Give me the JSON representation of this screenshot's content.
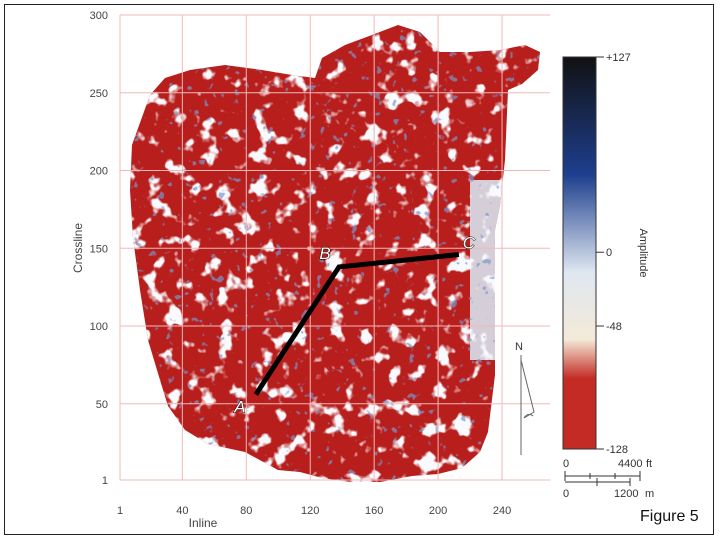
{
  "chart_data": {
    "type": "heatmap",
    "xlabel": "Inline",
    "ylabel": "Crossline",
    "xticks": [
      1,
      40,
      80,
      120,
      160,
      200,
      240
    ],
    "yticks": [
      1,
      50,
      100,
      150,
      200,
      250,
      300
    ],
    "xlim": [
      1,
      270
    ],
    "ylim": [
      1,
      300
    ],
    "grid": true,
    "colorbar": {
      "label": "Amplitude",
      "ticks": [
        "+127",
        "0",
        "-48",
        "-128"
      ],
      "tick_values": [
        127,
        0,
        -48,
        -128
      ],
      "colors": [
        "#111111",
        "#1e3f8e",
        "#dfe7f1",
        "#f3ead8",
        "#c42b25"
      ]
    },
    "line_points": [
      {
        "label": "A",
        "inline": 86,
        "crossline": 56
      },
      {
        "label": "B",
        "inline": 138,
        "crossline": 138
      },
      {
        "label": "C",
        "inline": 213,
        "crossline": 146
      }
    ],
    "north_arrow": "N",
    "scale_bar": {
      "top_start": "0",
      "top_end": "4400",
      "top_unit": "ft",
      "bottom_start": "0",
      "bottom_end": "1200",
      "bottom_unit": "m"
    },
    "colors": {
      "dominant": "#b81e1c",
      "low": "#d8e1ee"
    }
  },
  "figure_label": "Figure 5"
}
